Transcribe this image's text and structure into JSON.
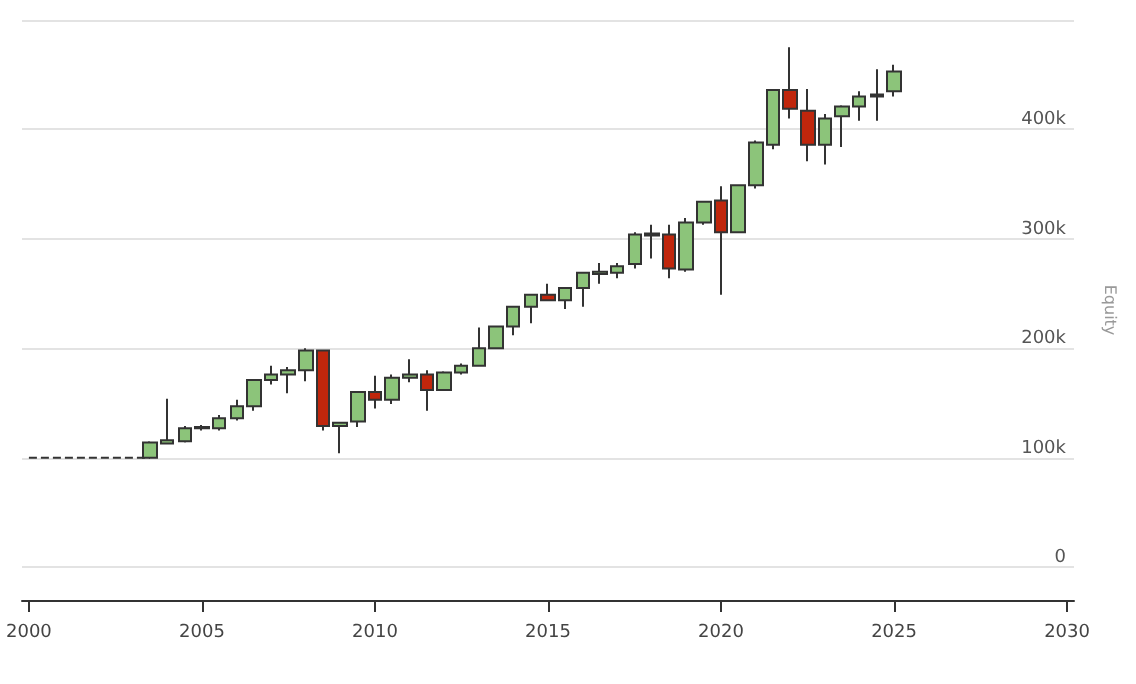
{
  "chart_data": {
    "type": "candlestick",
    "y2label": "Equity",
    "xlim": [
      1999.8,
      2030.2
    ],
    "xticks": [
      2000,
      2005,
      2010,
      2015,
      2020,
      2025,
      2030
    ],
    "ylim": [
      -30000,
      500000
    ],
    "yticks": [
      {
        "value": 0,
        "label": "0"
      },
      {
        "value": 100000,
        "label": "100k"
      },
      {
        "value": 200000,
        "label": "200k"
      },
      {
        "value": 300000,
        "label": "300k"
      },
      {
        "value": 400000,
        "label": "400k"
      },
      {
        "value": 500000,
        "label": null
      }
    ],
    "grid": "y",
    "series": [
      {
        "type": "line",
        "x": [
          2000,
          2003.5
        ],
        "values": [
          100000,
          100000
        ],
        "color": "#333333",
        "line_style": "dashed",
        "marker": "none"
      },
      {
        "color": "#333333",
        "x": [
          2003.5,
          2004,
          2004.5,
          2005,
          2005.5,
          2006,
          2006.5,
          2007,
          2007.5,
          2008,
          2008.5,
          2009,
          2009.5,
          2010,
          2010.5,
          2011,
          2011.5,
          2012,
          2012.5,
          2013,
          2013.5,
          2014,
          2014.5,
          2015,
          2015.5,
          2016,
          2016.5,
          2017,
          2017.5,
          2018,
          2018.5,
          2019,
          2019.5,
          2020,
          2020.5,
          2021,
          2021.5,
          2022,
          2022.5,
          2023,
          2023.5,
          2024,
          2024.5,
          2025
        ],
        "ohlc": [
          [
            100000,
            115000,
            100000,
            114000
          ],
          [
            113000,
            154000,
            112000,
            116000
          ],
          [
            115000,
            129000,
            114000,
            127000
          ],
          [
            127000,
            130000,
            125000,
            128000
          ],
          [
            127000,
            139000,
            125000,
            136000
          ],
          [
            136000,
            153000,
            134000,
            147000
          ],
          [
            147000,
            171000,
            143000,
            171000
          ],
          [
            171000,
            184000,
            167000,
            176000
          ],
          [
            176000,
            183000,
            159000,
            180000
          ],
          [
            180000,
            200000,
            170000,
            198000
          ],
          [
            198000,
            198000,
            125000,
            129000
          ],
          [
            129000,
            132000,
            104000,
            132000
          ],
          [
            133000,
            160000,
            128000,
            160000
          ],
          [
            160000,
            175000,
            145000,
            153000
          ],
          [
            153000,
            176000,
            149000,
            173000
          ],
          [
            173000,
            190000,
            169000,
            176000
          ],
          [
            176000,
            180000,
            143000,
            162000
          ],
          [
            162000,
            179000,
            161000,
            178000
          ],
          [
            178000,
            186000,
            176000,
            184000
          ],
          [
            184000,
            219000,
            184000,
            200000
          ],
          [
            200000,
            220000,
            200000,
            220000
          ],
          [
            220000,
            238000,
            212000,
            238000
          ],
          [
            238000,
            249000,
            223000,
            249000
          ],
          [
            249000,
            259000,
            244000,
            244000
          ],
          [
            244000,
            255000,
            236000,
            255000
          ],
          [
            255000,
            269000,
            238000,
            269000
          ],
          [
            268000,
            278000,
            259000,
            270000
          ],
          [
            269000,
            278000,
            264000,
            275000
          ],
          [
            277000,
            306000,
            273000,
            304000
          ],
          [
            303000,
            313000,
            282000,
            305000
          ],
          [
            304000,
            313000,
            264000,
            273000
          ],
          [
            272000,
            319000,
            270000,
            315000
          ],
          [
            315000,
            334000,
            313000,
            334000
          ],
          [
            335000,
            348000,
            249000,
            306000
          ],
          [
            306000,
            349000,
            306000,
            349000
          ],
          [
            349000,
            390000,
            346000,
            388000
          ],
          [
            386000,
            436000,
            382000,
            436000
          ],
          [
            436000,
            475000,
            410000,
            419000
          ],
          [
            417000,
            437000,
            371000,
            386000
          ],
          [
            386000,
            414000,
            368000,
            410000
          ],
          [
            412000,
            422000,
            384000,
            421000
          ],
          [
            421000,
            435000,
            408000,
            430000
          ],
          [
            430000,
            455000,
            408000,
            432000
          ],
          [
            435000,
            459000,
            430000,
            453000
          ]
        ],
        "colors": [
          "#8cc47a",
          "#8cc47a",
          "#8cc47a",
          "#8cc47a",
          "#8cc47a",
          "#8cc47a",
          "#8cc47a",
          "#8cc47a",
          "#8cc47a",
          "#8cc47a",
          "#c0260c",
          "#8cc47a",
          "#8cc47a",
          "#c0260c",
          "#8cc47a",
          "#8cc47a",
          "#c0260c",
          "#8cc47a",
          "#8cc47a",
          "#8cc47a",
          "#8cc47a",
          "#8cc47a",
          "#8cc47a",
          "#c0260c",
          "#8cc47a",
          "#8cc47a",
          "#8cc47a",
          "#8cc47a",
          "#8cc47a",
          "#8cc47a",
          "#c0260c",
          "#8cc47a",
          "#8cc47a",
          "#c0260c",
          "#8cc47a",
          "#8cc47a",
          "#8cc47a",
          "#c0260c",
          "#c0260c",
          "#8cc47a",
          "#8cc47a",
          "#8cc47a",
          "#8cc47a",
          "#8cc47a"
        ]
      }
    ]
  }
}
